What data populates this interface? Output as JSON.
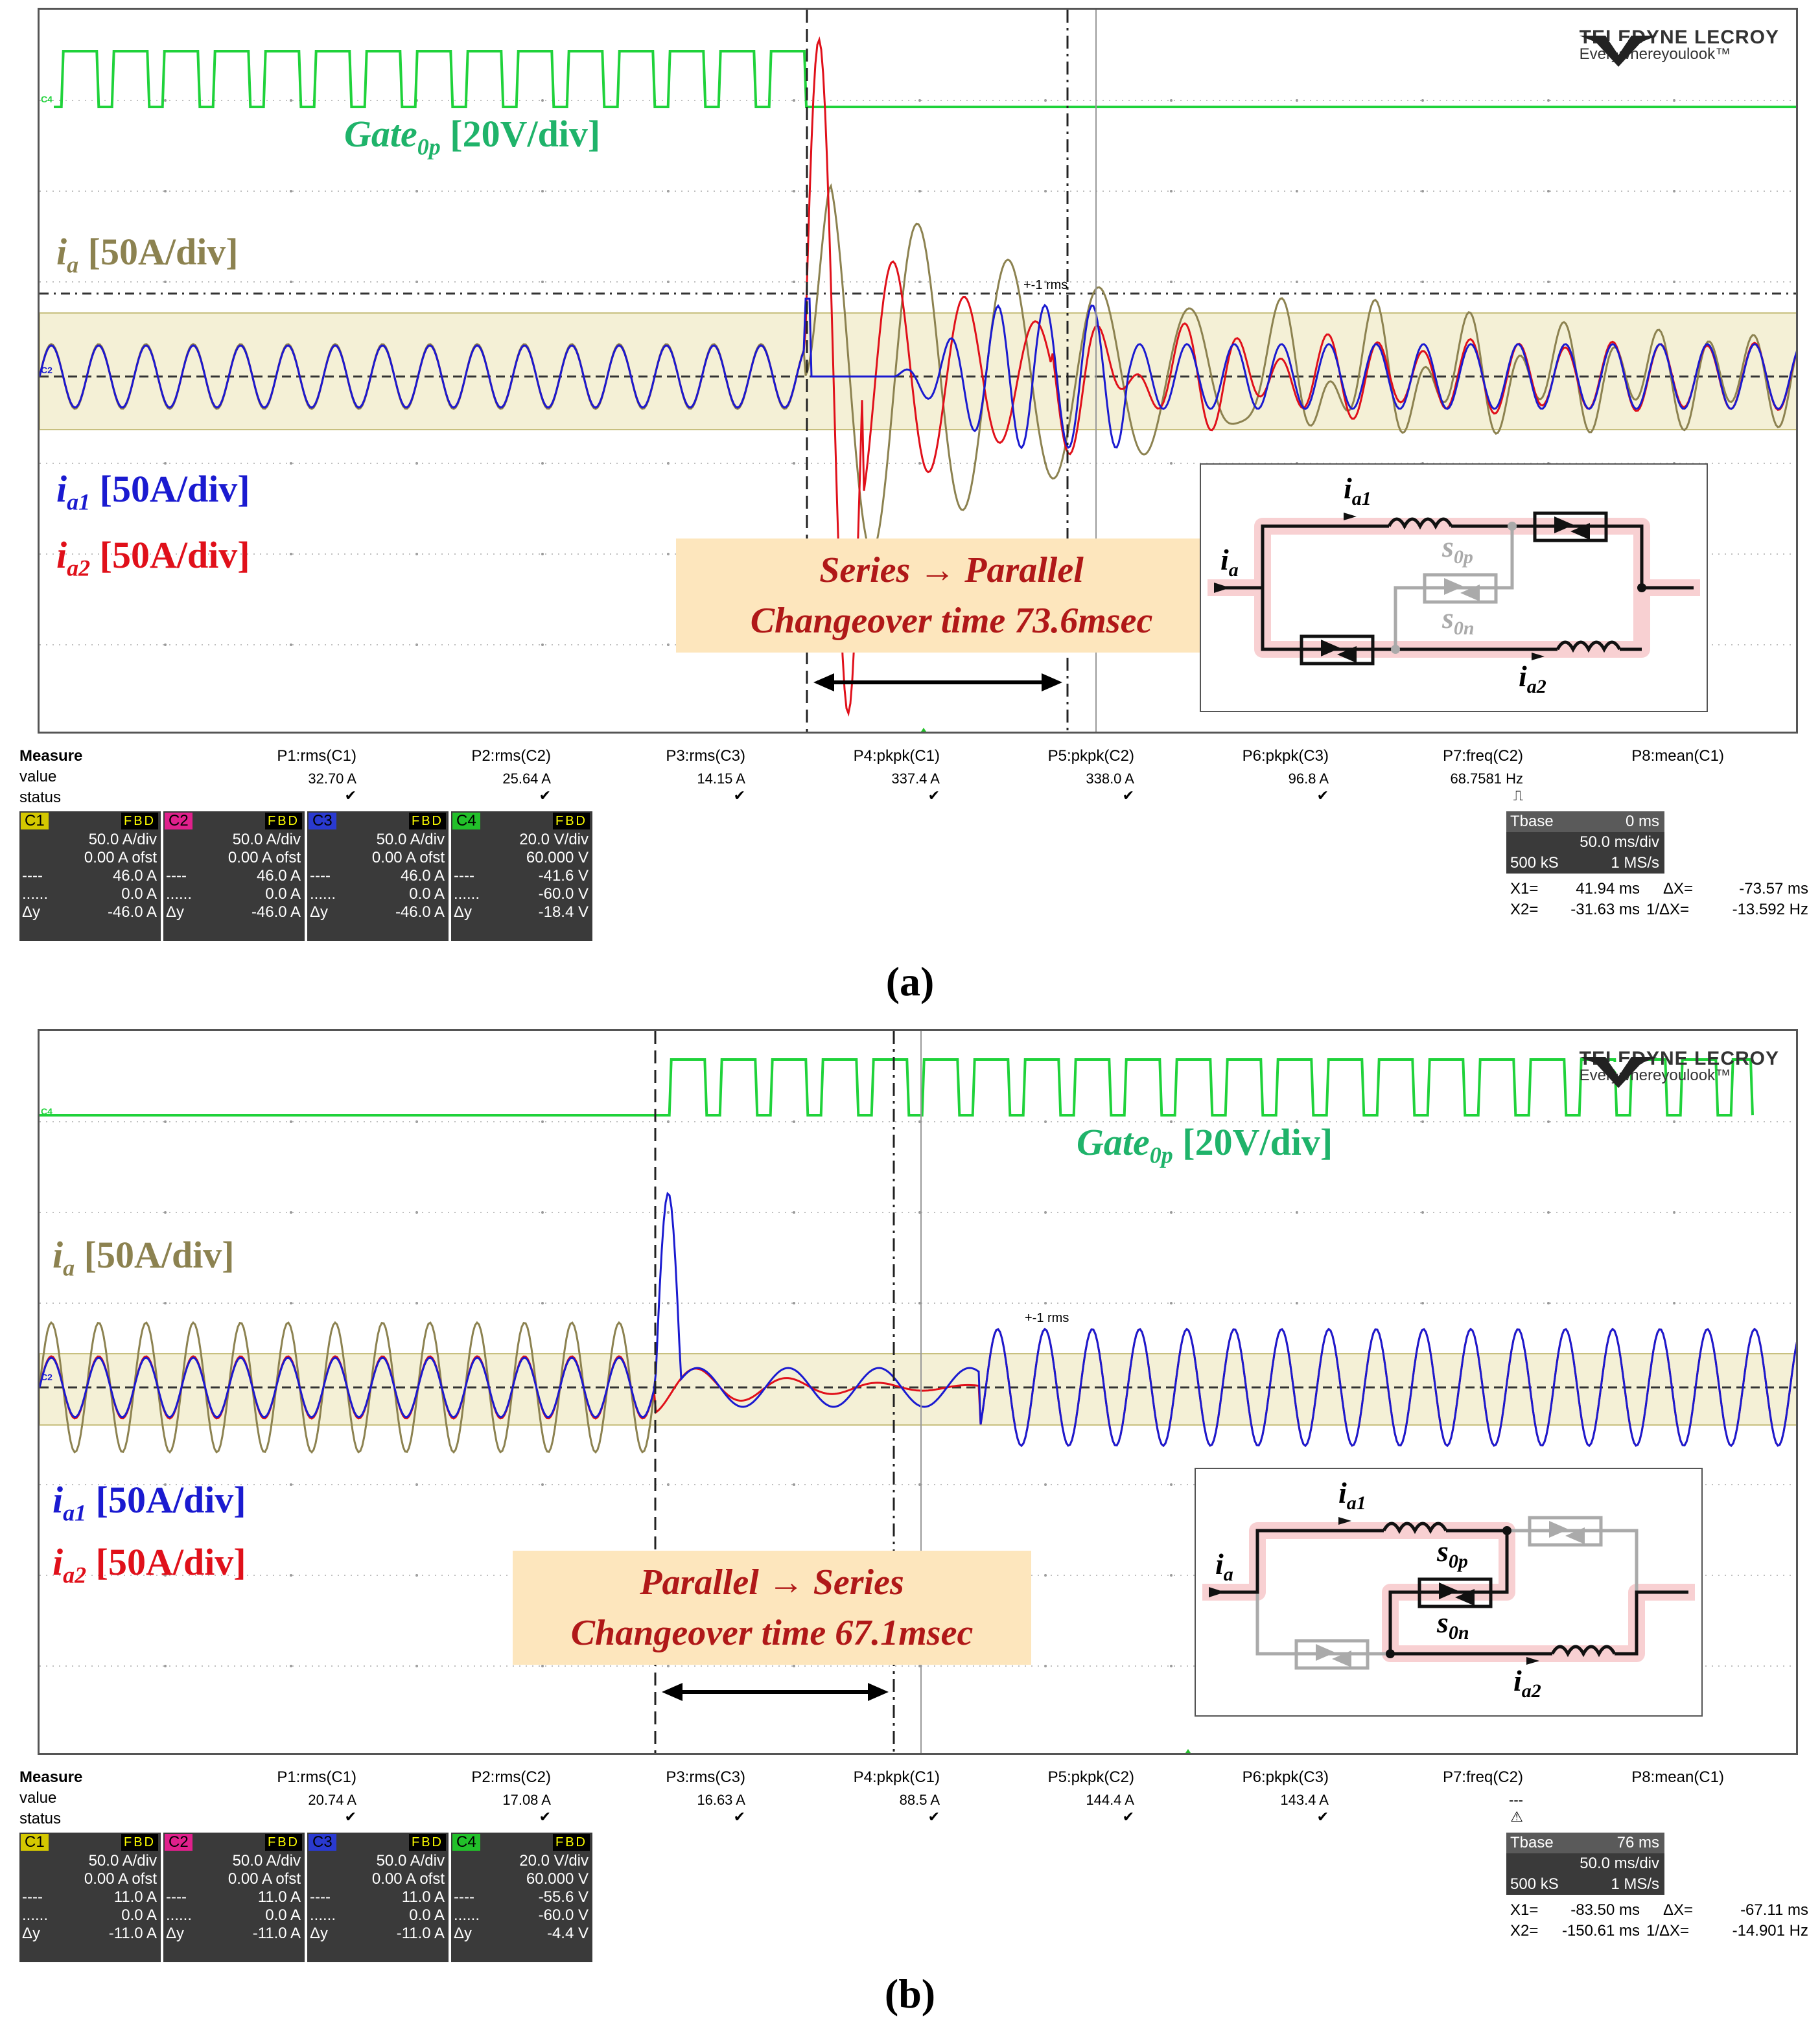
{
  "chart_data": [
    {
      "type": "line",
      "panel": "a",
      "title": "Series → Parallel changeover oscilloscope capture",
      "logo": {
        "brand": "TELEDYNE LECROY",
        "tagline": "Everywhereyoulook™"
      },
      "labels": {
        "gate": {
          "main": "Gate",
          "sub": "0p",
          "scale": " [20V/div]"
        },
        "ia": {
          "main": "i",
          "sub": "a",
          "scale": " [50A/div]"
        },
        "ia1": {
          "main": "i",
          "sub": "a1",
          "scale": " [50A/div]"
        },
        "ia2": {
          "main": "i",
          "sub": "a2",
          "scale": " [50A/div]"
        }
      },
      "annotation": {
        "line1": "Series → Parallel",
        "line2": "Changeover time 73.6msec"
      },
      "rms_marker": "+-1 rms",
      "channel_tags": [
        "C4",
        "C2"
      ],
      "inset": {
        "ia": "i",
        "ia_sub": "a",
        "ia1": "i",
        "ia1_sub": "a1",
        "ia2": "i",
        "ia2_sub": "a2",
        "s0p": "s",
        "s0p_sub": "0p",
        "s0n": "s",
        "s0n_sub": "0n"
      },
      "series": [
        {
          "name": "Gate0p",
          "color": "#1fd23a",
          "unit": "V",
          "scale": "20V/div"
        },
        {
          "name": "ia",
          "color": "#8c8250",
          "unit": "A",
          "scale": "50A/div"
        },
        {
          "name": "ia1",
          "color": "#1a1ad0",
          "unit": "A",
          "scale": "50A/div"
        },
        {
          "name": "ia2",
          "color": "#e0101a",
          "unit": "A",
          "scale": "50A/div"
        }
      ],
      "frequency_hz": 68.7581,
      "changeover_ms": 73.6,
      "measure": {
        "title": "Measure",
        "row_value": "value",
        "row_status": "status",
        "params": [
          {
            "name": "P1:rms(C1)",
            "value": "32.70 A",
            "status": "✔"
          },
          {
            "name": "P2:rms(C2)",
            "value": "25.64 A",
            "status": "✔"
          },
          {
            "name": "P3:rms(C3)",
            "value": "14.15 A",
            "status": "✔"
          },
          {
            "name": "P4:pkpk(C1)",
            "value": "337.4 A",
            "status": "✔"
          },
          {
            "name": "P5:pkpk(C2)",
            "value": "338.0 A",
            "status": "✔"
          },
          {
            "name": "P6:pkpk(C3)",
            "value": "96.8 A",
            "status": "✔"
          },
          {
            "name": "P7:freq(C2)",
            "value": "68.7581 Hz",
            "status": "⎍"
          },
          {
            "name": "P8:mean(C1)",
            "value": "",
            "status": ""
          }
        ]
      },
      "channels": [
        {
          "name": "C1",
          "fbd": "FBD",
          "color": "#d4c800",
          "scale": "50.0 A/div",
          "offset": "0.00 A ofst",
          "l1": "----",
          "v1": "46.0 A",
          "l2": "......",
          "v2": "0.0 A",
          "l3": "Δy",
          "v3": "-46.0 A"
        },
        {
          "name": "C2",
          "fbd": "FBD",
          "color": "#e0208c",
          "scale": "50.0 A/div",
          "offset": "0.00 A ofst",
          "l1": "----",
          "v1": "46.0 A",
          "l2": "......",
          "v2": "0.0 A",
          "l3": "Δy",
          "v3": "-46.0 A"
        },
        {
          "name": "C3",
          "fbd": "FBD",
          "color": "#2a3ad0",
          "scale": "50.0 A/div",
          "offset": "0.00 A ofst",
          "l1": "----",
          "v1": "46.0 A",
          "l2": "......",
          "v2": "0.0 A",
          "l3": "Δy",
          "v3": "-46.0 A"
        },
        {
          "name": "C4",
          "fbd": "FBD",
          "color": "#22c02a",
          "scale": "20.0 V/div",
          "offset": "60.000 V",
          "l1": "----",
          "v1": "-41.6 V",
          "l2": "......",
          "v2": "-60.0 V",
          "l3": "Δy",
          "v3": "-18.4 V"
        }
      ],
      "timebase": {
        "label": "Tbase",
        "delay": "0 ms",
        "div": "50.0 ms/div",
        "samples": "500 kS",
        "rate": "1 MS/s"
      },
      "cursors": {
        "x1_label": "X1=",
        "x1": "41.94 ms",
        "dx_label": "ΔX=",
        "dx": "-73.57 ms",
        "x2_label": "X2=",
        "x2": "-31.63 ms",
        "inv_label": "1/ΔX=",
        "inv": "-13.592 Hz"
      },
      "caption": "(a)"
    },
    {
      "type": "line",
      "panel": "b",
      "title": "Parallel → Series changeover oscilloscope capture",
      "logo": {
        "brand": "TELEDYNE LECROY",
        "tagline": "Everywhereyoulook™"
      },
      "labels": {
        "gate": {
          "main": "Gate",
          "sub": "0p",
          "scale": " [20V/div]"
        },
        "ia": {
          "main": "i",
          "sub": "a",
          "scale": " [50A/div]"
        },
        "ia1": {
          "main": "i",
          "sub": "a1",
          "scale": " [50A/div]"
        },
        "ia2": {
          "main": "i",
          "sub": "a2",
          "scale": " [50A/div]"
        }
      },
      "annotation": {
        "line1": "Parallel → Series",
        "line2": "Changeover time 67.1msec"
      },
      "rms_marker": "+-1 rms",
      "channel_tags": [
        "C4",
        "C2"
      ],
      "inset": {
        "ia": "i",
        "ia_sub": "a",
        "ia1": "i",
        "ia1_sub": "a1",
        "ia2": "i",
        "ia2_sub": "a2",
        "s0p": "s",
        "s0p_sub": "0p",
        "s0n": "s",
        "s0n_sub": "0n"
      },
      "series": [
        {
          "name": "Gate0p",
          "color": "#1fd23a",
          "unit": "V",
          "scale": "20V/div"
        },
        {
          "name": "ia",
          "color": "#8c8250",
          "unit": "A",
          "scale": "50A/div"
        },
        {
          "name": "ia1",
          "color": "#1a1ad0",
          "unit": "A",
          "scale": "50A/div"
        },
        {
          "name": "ia2",
          "color": "#e0101a",
          "unit": "A",
          "scale": "50A/div"
        }
      ],
      "changeover_ms": 67.1,
      "measure": {
        "title": "Measure",
        "row_value": "value",
        "row_status": "status",
        "params": [
          {
            "name": "P1:rms(C1)",
            "value": "20.74 A",
            "status": "✔"
          },
          {
            "name": "P2:rms(C2)",
            "value": "17.08 A",
            "status": "✔"
          },
          {
            "name": "P3:rms(C3)",
            "value": "16.63 A",
            "status": "✔"
          },
          {
            "name": "P4:pkpk(C1)",
            "value": "88.5 A",
            "status": "✔"
          },
          {
            "name": "P5:pkpk(C2)",
            "value": "144.4 A",
            "status": "✔"
          },
          {
            "name": "P6:pkpk(C3)",
            "value": "143.4 A",
            "status": "✔"
          },
          {
            "name": "P7:freq(C2)",
            "value": "---",
            "status": "⚠"
          },
          {
            "name": "P8:mean(C1)",
            "value": "",
            "status": ""
          }
        ]
      },
      "channels": [
        {
          "name": "C1",
          "fbd": "FBD",
          "color": "#d4c800",
          "scale": "50.0 A/div",
          "offset": "0.00 A ofst",
          "l1": "----",
          "v1": "11.0 A",
          "l2": "......",
          "v2": "0.0 A",
          "l3": "Δy",
          "v3": "-11.0 A"
        },
        {
          "name": "C2",
          "fbd": "FBD",
          "color": "#e0208c",
          "scale": "50.0 A/div",
          "offset": "0.00 A ofst",
          "l1": "----",
          "v1": "11.0 A",
          "l2": "......",
          "v2": "0.0 A",
          "l3": "Δy",
          "v3": "-11.0 A"
        },
        {
          "name": "C3",
          "fbd": "FBD",
          "color": "#2a3ad0",
          "scale": "50.0 A/div",
          "offset": "0.00 A ofst",
          "l1": "----",
          "v1": "11.0 A",
          "l2": "......",
          "v2": "0.0 A",
          "l3": "Δy",
          "v3": "-11.0 A"
        },
        {
          "name": "C4",
          "fbd": "FBD",
          "color": "#22c02a",
          "scale": "20.0 V/div",
          "offset": "60.000 V",
          "l1": "----",
          "v1": "-55.6 V",
          "l2": "......",
          "v2": "-60.0 V",
          "l3": "Δy",
          "v3": "-4.4 V"
        }
      ],
      "timebase": {
        "label": "Tbase",
        "delay": "76 ms",
        "div": "50.0 ms/div",
        "samples": "500 kS",
        "rate": "1 MS/s"
      },
      "cursors": {
        "x1_label": "X1=",
        "x1": "-83.50 ms",
        "dx_label": "ΔX=",
        "dx": "-67.11 ms",
        "x2_label": "X2=",
        "x2": "-150.61 ms",
        "inv_label": "1/ΔX=",
        "inv": "-14.901 Hz"
      },
      "caption": "(b)"
    }
  ]
}
